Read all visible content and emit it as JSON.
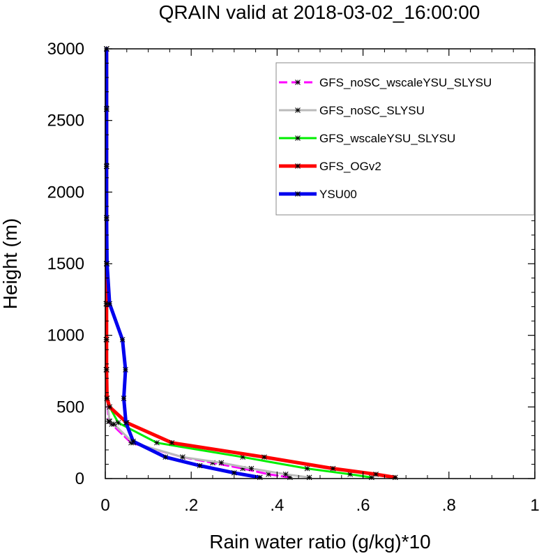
{
  "chart_data": {
    "type": "line",
    "title": "QRAIN valid at 2018-03-02_16:00:00",
    "xlabel": "Rain water ratio (g/kg)*10",
    "ylabel": "Height (m)",
    "xlim": [
      0,
      1
    ],
    "ylim": [
      0,
      3000
    ],
    "xticks": [
      {
        "value": 0,
        "label": "0"
      },
      {
        "value": 0.2,
        "label": ".2"
      },
      {
        "value": 0.4,
        "label": ".4"
      },
      {
        "value": 0.6,
        "label": ".6"
      },
      {
        "value": 0.8,
        "label": ".8"
      },
      {
        "value": 1,
        "label": "1"
      }
    ],
    "yticks": [
      {
        "value": 0,
        "label": "0"
      },
      {
        "value": 500,
        "label": "500"
      },
      {
        "value": 1000,
        "label": "1000"
      },
      {
        "value": 1500,
        "label": "1500"
      },
      {
        "value": 2000,
        "label": "2000"
      },
      {
        "value": 2500,
        "label": "2500"
      },
      {
        "value": 3000,
        "label": "3000"
      }
    ],
    "grid": false,
    "legend_position": "top-right",
    "series": [
      {
        "name": "GFS_noSC_wscaleYSU_SLYSU",
        "color": "#ff00ff",
        "dashed": true,
        "width": 3,
        "points": [
          [
            0.43,
            8
          ],
          [
            0.38,
            30
          ],
          [
            0.32,
            70
          ],
          [
            0.25,
            110
          ],
          [
            0.18,
            150
          ],
          [
            0.06,
            250
          ],
          [
            0.015,
            380
          ],
          [
            0.008,
            400
          ],
          [
            0.004,
            560
          ],
          [
            0.002,
            760
          ],
          [
            0.002,
            970
          ],
          [
            0.002,
            1220
          ],
          [
            0.003,
            1500
          ],
          [
            0.003,
            1820
          ],
          [
            0.003,
            2180
          ],
          [
            0.003,
            2580
          ],
          [
            0.003,
            3000
          ]
        ]
      },
      {
        "name": "GFS_noSC_SLYSU",
        "color": "#bbbbbb",
        "dashed": false,
        "width": 3,
        "points": [
          [
            0.475,
            8
          ],
          [
            0.42,
            30
          ],
          [
            0.34,
            70
          ],
          [
            0.27,
            110
          ],
          [
            0.18,
            150
          ],
          [
            0.065,
            250
          ],
          [
            0.02,
            380
          ],
          [
            0.01,
            400
          ],
          [
            0.004,
            560
          ],
          [
            0.003,
            760
          ],
          [
            0.003,
            970
          ],
          [
            0.003,
            1220
          ],
          [
            0.003,
            1500
          ],
          [
            0.003,
            1820
          ],
          [
            0.003,
            2180
          ],
          [
            0.003,
            2580
          ],
          [
            0.003,
            3000
          ]
        ]
      },
      {
        "name": "GFS_wscaleYSU_SLYSU",
        "color": "#00ee00",
        "dashed": false,
        "width": 3,
        "points": [
          [
            0.62,
            8
          ],
          [
            0.57,
            30
          ],
          [
            0.47,
            70
          ],
          [
            0.32,
            150
          ],
          [
            0.12,
            250
          ],
          [
            0.03,
            390
          ],
          [
            0.01,
            500
          ],
          [
            0.004,
            560
          ],
          [
            0.003,
            760
          ],
          [
            0.003,
            970
          ],
          [
            0.003,
            1220
          ],
          [
            0.003,
            1500
          ],
          [
            0.003,
            1820
          ],
          [
            0.003,
            2180
          ],
          [
            0.003,
            2580
          ],
          [
            0.003,
            3000
          ]
        ]
      },
      {
        "name": "GFS_OGv2",
        "color": "#ff0000",
        "dashed": false,
        "width": 5,
        "points": [
          [
            0.675,
            8
          ],
          [
            0.63,
            30
          ],
          [
            0.53,
            70
          ],
          [
            0.37,
            150
          ],
          [
            0.155,
            250
          ],
          [
            0.05,
            390
          ],
          [
            0.01,
            500
          ],
          [
            0.004,
            560
          ],
          [
            0.003,
            760
          ],
          [
            0.003,
            970
          ],
          [
            0.003,
            1220
          ],
          [
            0.003,
            1500
          ],
          [
            0.003,
            1820
          ],
          [
            0.003,
            2180
          ],
          [
            0.003,
            2580
          ],
          [
            0.003,
            3000
          ]
        ]
      },
      {
        "name": "YSU00",
        "color": "#0000ee",
        "dashed": false,
        "width": 5,
        "points": [
          [
            0.36,
            8
          ],
          [
            0.3,
            40
          ],
          [
            0.22,
            90
          ],
          [
            0.14,
            150
          ],
          [
            0.065,
            260
          ],
          [
            0.048,
            390
          ],
          [
            0.043,
            560
          ],
          [
            0.047,
            760
          ],
          [
            0.04,
            970
          ],
          [
            0.01,
            1220
          ],
          [
            0.004,
            1500
          ],
          [
            0.003,
            1820
          ],
          [
            0.003,
            2180
          ],
          [
            0.003,
            2580
          ],
          [
            0.003,
            3000
          ]
        ]
      }
    ]
  }
}
